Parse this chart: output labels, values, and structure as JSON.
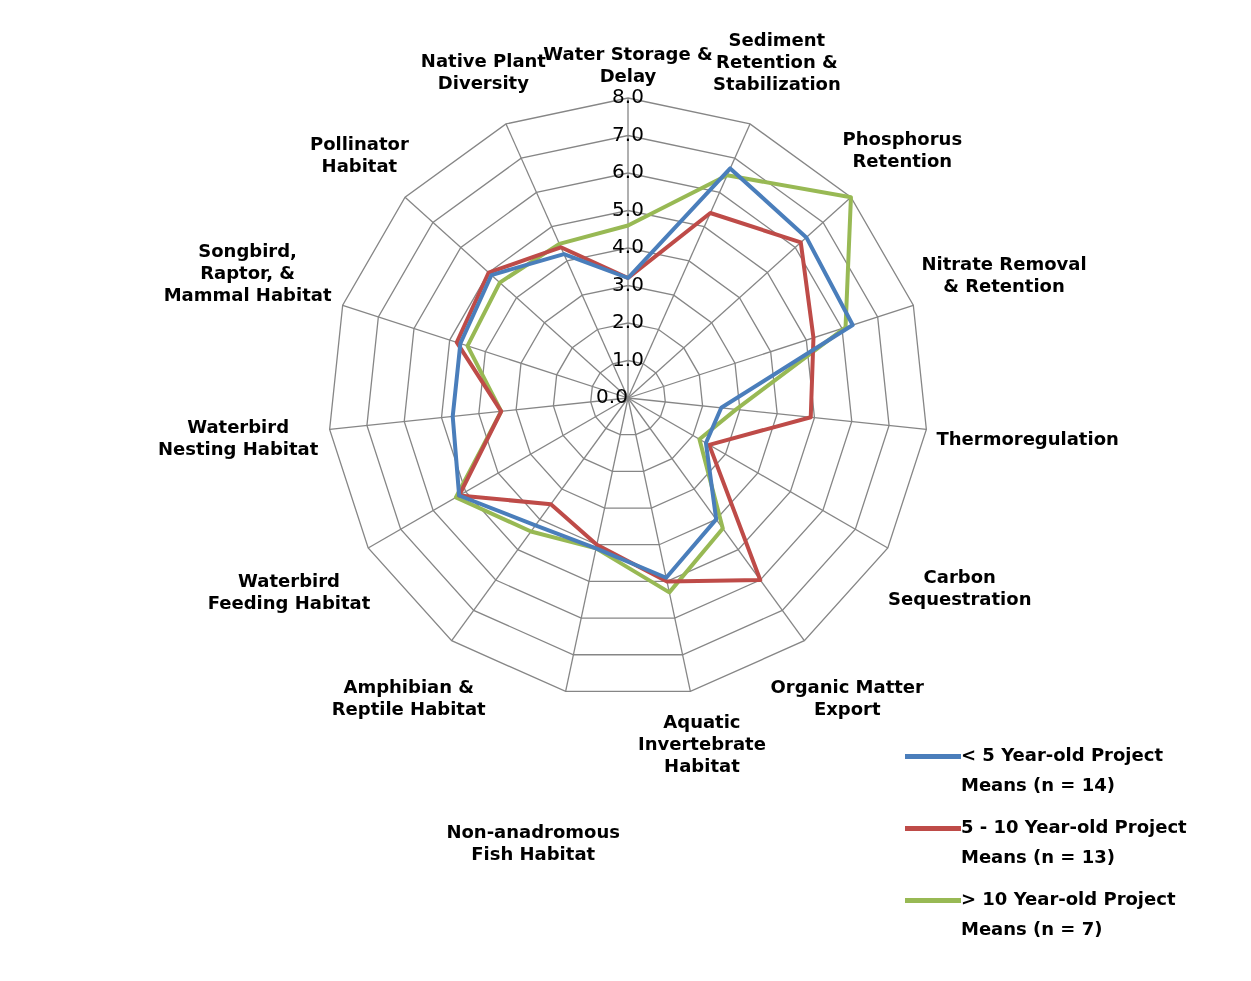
{
  "chart_data": {
    "type": "radar",
    "categories": [
      "Water Storage & Delay",
      "Sediment Retention & Stabilization",
      "Phosphorus Retention",
      "Nitrate Removal & Retention",
      "Thermoregulation",
      "Carbon Sequestration",
      "Organic Matter Export",
      "Aquatic Invertebrate Habitat",
      "Non-anadromous Fish Habitat",
      "Amphibian & Reptile Habitat",
      "Waterbird Feeding Habitat",
      "Waterbird Nesting Habitat",
      "Songbird, Raptor, & Mammal Habitat",
      "Pollinator Habitat",
      "Native Plant Diversity"
    ],
    "series": [
      {
        "name": "< 5 Year-old Project Means (n = 14)",
        "color": "#4a7ebb",
        "values": [
          3.2,
          6.7,
          6.4,
          6.3,
          2.5,
          2.4,
          4.0,
          4.9,
          4.1,
          4.2,
          5.2,
          4.7,
          4.7,
          4.9,
          4.2
        ]
      },
      {
        "name": "5 - 10 Year-old Project Means (n = 13)",
        "color": "#be4b48",
        "values": [
          3.2,
          5.4,
          6.2,
          5.2,
          4.9,
          2.5,
          6.0,
          5.0,
          4.0,
          3.5,
          5.2,
          3.4,
          4.8,
          5.0,
          4.4
        ]
      },
      {
        "name": "> 10 Year-old Project Means (n = 7)",
        "color": "#98b954",
        "values": [
          4.6,
          6.5,
          8.0,
          6.1,
          2.9,
          2.2,
          4.3,
          5.3,
          4.1,
          4.4,
          5.3,
          3.4,
          4.5,
          4.6,
          4.5
        ]
      }
    ],
    "ylim": [
      0,
      8
    ],
    "yticks": [
      {
        "value": 0,
        "label": "0.0"
      },
      {
        "value": 1,
        "label": "1.0"
      },
      {
        "value": 2,
        "label": "2.0"
      },
      {
        "value": 3,
        "label": "3.0"
      },
      {
        "value": 4,
        "label": "4.0"
      },
      {
        "value": 5,
        "label": "5.0"
      },
      {
        "value": 6,
        "label": "6.0"
      },
      {
        "value": 7,
        "label": "7.0"
      },
      {
        "value": 8,
        "label": "8.0"
      }
    ],
    "grid": true,
    "legend": "bottom right",
    "marker": "none",
    "line_style": "solid"
  }
}
